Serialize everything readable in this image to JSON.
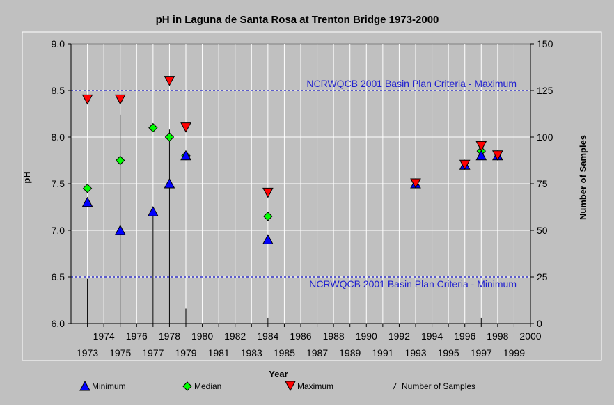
{
  "chart_data": {
    "type": "scatter",
    "title": "pH in Laguna de Santa Rosa at Trenton Bridge 1973-2000",
    "xlabel": "Year",
    "ylabel": "pH",
    "y2label": "Number of Samples",
    "xlim": [
      1972,
      2000
    ],
    "ylim": [
      6.0,
      9.0
    ],
    "y2lim": [
      0,
      150
    ],
    "grid": true,
    "x_ticks_upper": [
      "1974",
      "1976",
      "1978",
      "1980",
      "1982",
      "1984",
      "1986",
      "1988",
      "1990",
      "1992",
      "1994",
      "1996",
      "1998",
      "2000"
    ],
    "x_ticks_lower": [
      "1973",
      "1975",
      "1977",
      "1979",
      "1981",
      "1983",
      "1985",
      "1987",
      "1989",
      "1991",
      "1993",
      "1995",
      "1997",
      "1999"
    ],
    "y_ticks": [
      "6.0",
      "6.5",
      "7.0",
      "7.5",
      "8.0",
      "8.5",
      "9.0"
    ],
    "y2_ticks": [
      "0",
      "25",
      "50",
      "75",
      "100",
      "125",
      "150"
    ],
    "reference_lines": [
      {
        "label": "NCRWQCB 2001 Basin Plan Criteria - Maximum",
        "y": 8.5
      },
      {
        "label": "NCRWQCB 2001 Basin Plan Criteria - Minimum",
        "y": 6.5
      }
    ],
    "series": [
      {
        "name": "Minimum",
        "color": "#0000ff",
        "marker": "triangle-up",
        "x": [
          1973,
          1975,
          1977,
          1978,
          1979,
          1984,
          1993,
          1996,
          1997,
          1998
        ],
        "y": [
          7.3,
          7.0,
          7.2,
          7.5,
          7.8,
          6.9,
          7.5,
          7.7,
          7.8,
          7.8
        ]
      },
      {
        "name": "Median",
        "color": "#00ff00",
        "marker": "diamond",
        "x": [
          1973,
          1975,
          1977,
          1978,
          1979,
          1984,
          1997
        ],
        "y": [
          7.45,
          7.75,
          8.1,
          8.0,
          7.8,
          7.15,
          7.85
        ]
      },
      {
        "name": "Maximum",
        "color": "#ff0000",
        "marker": "triangle-down",
        "x": [
          1973,
          1975,
          1978,
          1979,
          1984,
          1993,
          1996,
          1997,
          1998
        ],
        "y": [
          8.4,
          8.4,
          8.6,
          8.1,
          7.4,
          7.5,
          7.7,
          7.9,
          7.8
        ]
      },
      {
        "name": "Number of Samples",
        "color": "#000000",
        "marker": "bar-line",
        "x": [
          1973,
          1975,
          1977,
          1978,
          1979,
          1984,
          1997
        ],
        "y": [
          24,
          112,
          58,
          104,
          8,
          3,
          3
        ]
      }
    ]
  }
}
